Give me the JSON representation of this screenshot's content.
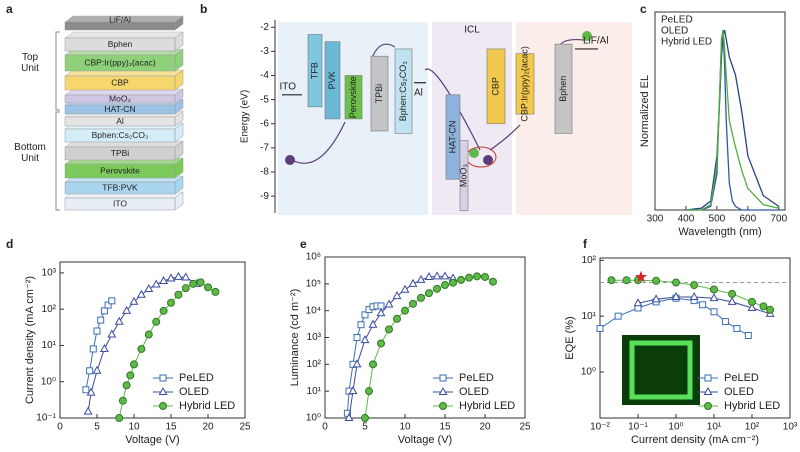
{
  "panel_labels": [
    "a",
    "b",
    "c",
    "d",
    "e",
    "f"
  ],
  "stack": {
    "layers": [
      {
        "label": "LiF/Al",
        "color": "#8c8c8c"
      },
      {
        "label": "Bphen",
        "color": "#dcdcdc"
      },
      {
        "label": "CBP:Ir(ppy)₂(acac)",
        "color": "#8fd17a"
      },
      {
        "label": "CBP",
        "color": "#f5d76e"
      },
      {
        "label": "MoO₃",
        "color": "#cfc6e4"
      },
      {
        "label": "HAT-CN",
        "color": "#9cc3e6"
      },
      {
        "label": "Al",
        "color": "#e4e4e4"
      },
      {
        "label": "Bphen:Cs₂CO₃",
        "color": "#d4ecf7"
      },
      {
        "label": "TPBi",
        "color": "#d0d0d0"
      },
      {
        "label": "Perovskite",
        "color": "#7cc95c"
      },
      {
        "label": "TFB:PVK",
        "color": "#a9d6ee"
      },
      {
        "label": "ITO",
        "color": "#e8eef6"
      }
    ],
    "units": [
      "Top Unit",
      "Bottom Unit"
    ],
    "unit_color": "#c0392b"
  },
  "chart_data": [
    {
      "type": "energy",
      "ylabel": "Energy (eV)",
      "ylim": [
        -9.7,
        -1.7
      ],
      "yticks": [
        -2,
        -3,
        -4,
        -5,
        -6,
        -7,
        -8,
        -9
      ],
      "region_label": "ICL",
      "layers": [
        {
          "name": "TFB",
          "color": "#7fc6de",
          "values": [
            -2.3,
            -5.3
          ]
        },
        {
          "name": "PVK",
          "color": "#6bb8d6",
          "values": [
            -2.6,
            -5.8
          ]
        },
        {
          "name": "Perovskite",
          "color": "#6cc04a",
          "values": [
            -4.0,
            -5.8
          ]
        },
        {
          "name": "TPBi",
          "color": "#c4c4c4",
          "values": [
            -3.2,
            -6.3
          ]
        },
        {
          "name": "Bphen:Cs₂CO₃",
          "color": "#bfe3f0",
          "values": [
            -2.9,
            -6.4
          ]
        },
        {
          "name": "HAT-CN",
          "color": "#8db3dc",
          "values": [
            -4.8,
            -8.3
          ]
        },
        {
          "name": "MoO₃",
          "color": "#d9d0e6",
          "values": [
            -6.7,
            -9.6
          ]
        },
        {
          "name": "CBP",
          "color": "#f2c94c",
          "values": [
            -2.9,
            -6.0
          ]
        },
        {
          "name": "CBP:Ir(ppy)₂(acac)",
          "color": "#f2c94c",
          "values": [
            -3.1,
            -5.6
          ]
        },
        {
          "name": "Bphen",
          "color": "#c4c4c4",
          "values": [
            -2.7,
            -6.4
          ]
        }
      ],
      "levels": [
        {
          "name": "ITO",
          "value": -4.8
        },
        {
          "name": "Al",
          "value": -4.3
        },
        {
          "name": "LiF/Al",
          "value": -2.9
        }
      ]
    },
    {
      "type": "line",
      "xlabel": "Wavelength (nm)",
      "ylabel": "Normalized EL",
      "xlim": [
        300,
        720
      ],
      "xticks": [
        300,
        400,
        500,
        600,
        700
      ],
      "ylim": [
        0,
        1.1
      ],
      "legend": "upper left",
      "series": [
        {
          "name": "PeLED",
          "color": "#2e58a6",
          "x": [
            400,
            450,
            480,
            500,
            510,
            515,
            520,
            525,
            530,
            540,
            550,
            560,
            580,
            600,
            650,
            700
          ],
          "values": [
            0,
            0,
            0.02,
            0.2,
            0.7,
            0.95,
            1.0,
            0.8,
            0.5,
            0.15,
            0.05,
            0.02,
            0,
            0,
            0,
            0
          ]
        },
        {
          "name": "OLED",
          "color": "#27427f",
          "x": [
            400,
            450,
            480,
            500,
            510,
            515,
            520,
            525,
            530,
            540,
            550,
            560,
            580,
            600,
            650,
            700
          ],
          "values": [
            0,
            0.01,
            0.05,
            0.3,
            0.65,
            0.85,
            0.97,
            1.0,
            0.95,
            0.85,
            0.8,
            0.75,
            0.55,
            0.3,
            0.08,
            0.02
          ]
        },
        {
          "name": "Hybrid LED",
          "color": "#4fae3c",
          "x": [
            400,
            450,
            480,
            500,
            510,
            515,
            520,
            525,
            530,
            540,
            550,
            560,
            580,
            600,
            650,
            700
          ],
          "values": [
            0,
            0,
            0.03,
            0.25,
            0.7,
            0.93,
            1.0,
            0.9,
            0.75,
            0.5,
            0.42,
            0.35,
            0.22,
            0.12,
            0.03,
            0.01
          ]
        }
      ]
    },
    {
      "type": "line",
      "xlabel": "Voltage (V)",
      "ylabel": "Current density (mA cm⁻²)",
      "xlim": [
        0,
        25
      ],
      "xticks": [
        0,
        5,
        10,
        15,
        20,
        25
      ],
      "yscale": "log",
      "ylim": [
        0.1,
        2000
      ],
      "yticks": [
        {
          "value": 0.1,
          "label": "10⁻¹"
        },
        {
          "value": 1,
          "label": "10⁰"
        },
        {
          "value": 10,
          "label": "10¹"
        },
        {
          "value": 100,
          "label": "10²"
        },
        {
          "value": 1000,
          "label": "10³"
        }
      ],
      "legend": "lower right",
      "series": [
        {
          "name": "PeLED",
          "color": "#3a6fb5",
          "marker": "square",
          "x": [
            3.5,
            4,
            4.5,
            5,
            5.5,
            6,
            6.5,
            7
          ],
          "values": [
            0.6,
            2,
            8,
            25,
            50,
            90,
            130,
            170
          ]
        },
        {
          "name": "OLED",
          "color": "#3b4a9e",
          "marker": "triangle",
          "x": [
            3.8,
            4.2,
            5,
            6,
            7,
            8,
            9,
            10,
            11,
            12,
            13,
            14,
            15,
            16,
            17,
            18.5
          ],
          "values": [
            0.15,
            0.5,
            2,
            8,
            20,
            45,
            90,
            160,
            250,
            360,
            480,
            600,
            700,
            780,
            750,
            500
          ]
        },
        {
          "name": "Hybrid LED",
          "color": "#5fb84a",
          "marker": "circle",
          "x": [
            8,
            8.5,
            9,
            9.5,
            10,
            11,
            12,
            13,
            14,
            15,
            16,
            17,
            18,
            19,
            20,
            21
          ],
          "values": [
            0.1,
            0.3,
            0.8,
            1.5,
            3,
            8,
            20,
            45,
            90,
            150,
            250,
            380,
            500,
            550,
            400,
            300
          ]
        }
      ]
    },
    {
      "type": "line",
      "xlabel": "Voltage (V)",
      "ylabel": "Luminance (cd m⁻²)",
      "xlim": [
        0,
        25
      ],
      "xticks": [
        0,
        5,
        10,
        15,
        20,
        25
      ],
      "yscale": "log",
      "ylim": [
        1,
        1000000
      ],
      "yticks": [
        {
          "value": 1,
          "label": "10⁰"
        },
        {
          "value": 10,
          "label": "10¹"
        },
        {
          "value": 100,
          "label": "10²"
        },
        {
          "value": 1000,
          "label": "10³"
        },
        {
          "value": 10000,
          "label": "10⁴"
        },
        {
          "value": 100000,
          "label": "10⁵"
        },
        {
          "value": 1000000,
          "label": "10⁶"
        }
      ],
      "legend": "lower right",
      "series": [
        {
          "name": "PeLED",
          "color": "#3a6fb5",
          "marker": "square",
          "x": [
            2.8,
            3,
            3.5,
            4,
            4.5,
            5,
            5.5,
            6,
            6.5,
            7
          ],
          "values": [
            1.5,
            10,
            100,
            1000,
            3000,
            7000,
            11000,
            14000,
            15000,
            15000
          ]
        },
        {
          "name": "OLED",
          "color": "#3b4a9e",
          "marker": "triangle",
          "x": [
            3,
            3.5,
            4,
            5,
            6,
            7,
            8,
            9,
            10,
            11,
            12,
            13,
            14,
            15,
            16
          ],
          "values": [
            1,
            10,
            100,
            800,
            3000,
            8000,
            17000,
            35000,
            60000,
            100000,
            140000,
            180000,
            190000,
            190000,
            160000
          ]
        },
        {
          "name": "Hybrid LED",
          "color": "#5fb84a",
          "marker": "circle",
          "x": [
            5,
            5.5,
            6,
            7,
            8,
            9,
            10,
            11,
            12,
            13,
            14,
            15,
            16,
            17,
            18,
            19,
            20,
            21
          ],
          "values": [
            1,
            10,
            100,
            600,
            2000,
            5000,
            10000,
            18000,
            30000,
            45000,
            65000,
            90000,
            110000,
            140000,
            170000,
            190000,
            180000,
            120000
          ]
        }
      ]
    },
    {
      "type": "line",
      "xlabel": "Current density (mA cm⁻²)",
      "ylabel": "EQE (%)",
      "xscale": "log",
      "xlim": [
        0.01,
        1000
      ],
      "xticks": [
        {
          "value": 0.01,
          "label": "10⁻²"
        },
        {
          "value": 0.1,
          "label": "10⁻¹"
        },
        {
          "value": 1,
          "label": "10⁰"
        },
        {
          "value": 10,
          "label": "10¹"
        },
        {
          "value": 100,
          "label": "10²"
        },
        {
          "value": 1000,
          "label": "10³"
        }
      ],
      "yscale": "log",
      "ylim": [
        0.15,
        110
      ],
      "yticks": [
        {
          "value": 1,
          "label": "10⁰"
        },
        {
          "value": 10,
          "label": "10¹"
        },
        {
          "value": 100,
          "label": "10²"
        }
      ],
      "legend": "lower right",
      "reference_line": 40,
      "star": {
        "x": 0.12,
        "y": 50,
        "color": "#d62728"
      },
      "series": [
        {
          "name": "PeLED",
          "color": "#3a6fb5",
          "marker": "square",
          "x": [
            0.01,
            0.03,
            0.1,
            0.3,
            1,
            3,
            5,
            10,
            20,
            40,
            80
          ],
          "values": [
            6,
            10,
            14,
            18,
            21,
            19,
            16,
            12,
            8,
            6,
            4.5
          ]
        },
        {
          "name": "OLED",
          "color": "#3b4a9e",
          "marker": "triangle",
          "x": [
            0.1,
            0.3,
            1,
            3,
            10,
            30,
            100,
            300
          ],
          "values": [
            17,
            20,
            22,
            22,
            21,
            18,
            14,
            11
          ]
        },
        {
          "name": "Hybrid LED",
          "color": "#5fb84a",
          "marker": "circle",
          "x": [
            0.02,
            0.05,
            0.1,
            0.3,
            1,
            3,
            10,
            30,
            100,
            200,
            300
          ],
          "values": [
            44,
            44,
            44,
            43,
            40,
            36,
            30,
            25,
            18,
            15,
            13
          ]
        }
      ]
    }
  ]
}
